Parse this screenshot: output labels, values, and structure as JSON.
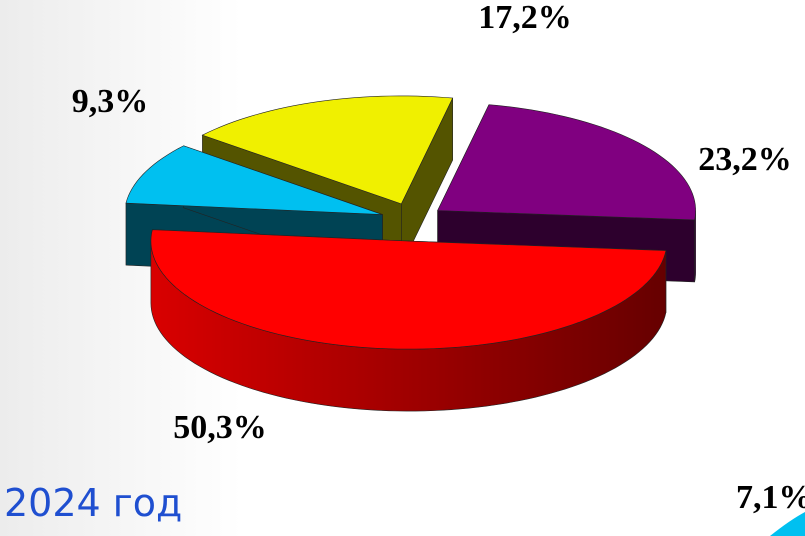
{
  "chart_data": {
    "type": "pie",
    "values": [
      50.3,
      9.3,
      17.2,
      23.2
    ],
    "value_labels": [
      "50,3%",
      "9,3%",
      "17,2%",
      "23,2%"
    ],
    "colors": [
      "#ff0000",
      "#00c0f0",
      "#f0f000",
      "#800080"
    ],
    "annotations": [
      "2024 год",
      "7,1%"
    ]
  }
}
